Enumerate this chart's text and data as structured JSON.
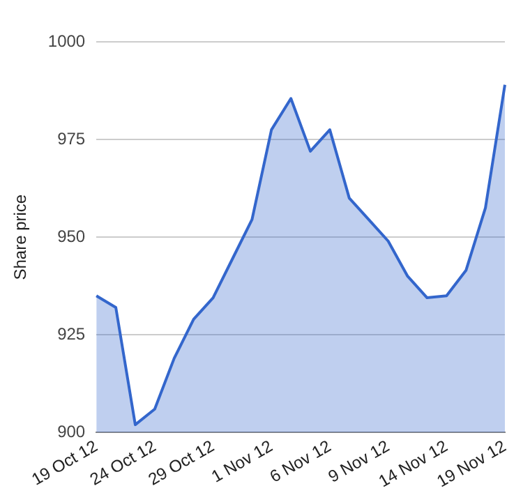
{
  "chart_data": {
    "type": "area",
    "ylabel": "Share price",
    "categories": [
      "19 Oct 12",
      null,
      null,
      "24 Oct 12",
      null,
      null,
      "29 Oct 12",
      null,
      null,
      "1 Nov 12",
      null,
      null,
      "6 Nov 12",
      null,
      null,
      "9 Nov 12",
      null,
      null,
      "14 Nov 12",
      null,
      null,
      "19 Nov 12"
    ],
    "series": [
      {
        "color": "#3366cc",
        "values": [
          935,
          932,
          902,
          906,
          919,
          929,
          934.5,
          944.5,
          954.5,
          977.5,
          985.5,
          972,
          977.5,
          960,
          954.5,
          949,
          940,
          934.5,
          935,
          941.5,
          957.5,
          989
        ]
      }
    ],
    "ylim": [
      900,
      1000
    ],
    "yticks": [
      900,
      925,
      950,
      975,
      1000
    ],
    "grid": "y",
    "legend": false,
    "marker": "none",
    "line_style": "solid"
  }
}
